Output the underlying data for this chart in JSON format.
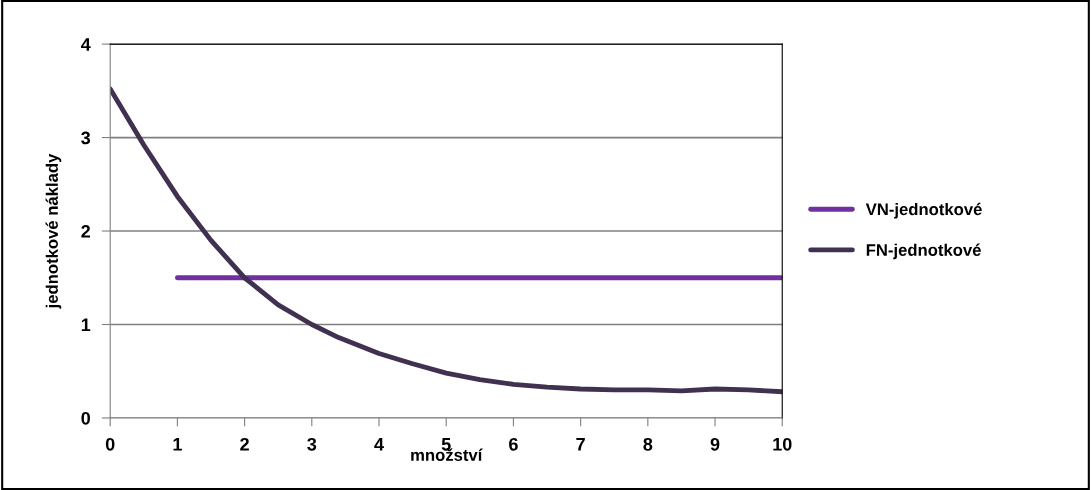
{
  "chart_data": {
    "type": "line",
    "xlabel": "množství",
    "ylabel": "jednotkové náklady",
    "xlim": [
      0,
      10
    ],
    "xticks": [
      0,
      1,
      2,
      3,
      4,
      5,
      6,
      7,
      8,
      9,
      10
    ],
    "ylim": [
      0,
      4
    ],
    "yticks": [
      0,
      1,
      2,
      3,
      4
    ],
    "grid": "y",
    "legend": "right",
    "marker": "none",
    "line_style": "solid",
    "series": [
      {
        "name": "VN-jednotkové",
        "color": "#7030a0",
        "x": [
          1,
          2,
          3,
          4,
          5,
          6,
          7,
          8,
          9,
          10
        ],
        "values": [
          1.5,
          1.5,
          1.5,
          1.5,
          1.5,
          1.5,
          1.5,
          1.5,
          1.5,
          1.5
        ]
      },
      {
        "name": "FN-jednotkové",
        "color": "#403151",
        "x": [
          0,
          0.5,
          1,
          1.5,
          2,
          2.5,
          3,
          3.4,
          4,
          4.5,
          5,
          5.5,
          6,
          6.5,
          7,
          7.5,
          8,
          8.5,
          9,
          9.5,
          10
        ],
        "values": [
          3.52,
          2.92,
          2.37,
          1.9,
          1.5,
          1.21,
          1.0,
          0.86,
          0.69,
          0.58,
          0.48,
          0.41,
          0.36,
          0.33,
          0.31,
          0.3,
          0.3,
          0.29,
          0.31,
          0.3,
          0.28
        ]
      }
    ]
  }
}
